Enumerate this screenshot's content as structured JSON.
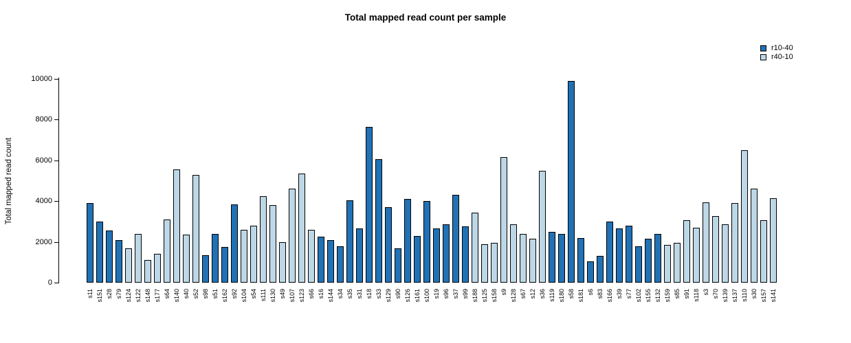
{
  "title": "Total mapped read count per sample",
  "legend": {
    "items": [
      {
        "label": "r10-40",
        "color": "#2171B5"
      },
      {
        "label": "r40-10",
        "color": "#BDD7E7"
      }
    ]
  },
  "colors": {
    "dark": "#2171B5",
    "light": "#BDD7E7",
    "axis": "#000000"
  },
  "chart_data": {
    "type": "bar",
    "title": "Total mapped read count per sample",
    "xlabel": "",
    "ylabel": "Total mapped read count",
    "ylim": [
      0,
      10000
    ],
    "yticks": [
      0,
      2000,
      4000,
      6000,
      8000,
      10000
    ],
    "grid": false,
    "legend_position": "top-right",
    "series_colors": {
      "r10-40": "#2171B5",
      "r40-10": "#BDD7E7"
    },
    "samples": [
      {
        "label": "s11",
        "value": 3900,
        "series": "r10-40"
      },
      {
        "label": "s151",
        "value": 3000,
        "series": "r10-40"
      },
      {
        "label": "s28",
        "value": 2550,
        "series": "r10-40"
      },
      {
        "label": "s79",
        "value": 2100,
        "series": "r10-40"
      },
      {
        "label": "s124",
        "value": 1700,
        "series": "r40-10"
      },
      {
        "label": "s122",
        "value": 2400,
        "series": "r40-10"
      },
      {
        "label": "s148",
        "value": 1100,
        "series": "r40-10"
      },
      {
        "label": "s177",
        "value": 1400,
        "series": "r40-10"
      },
      {
        "label": "s64",
        "value": 3100,
        "series": "r40-10"
      },
      {
        "label": "s140",
        "value": 5550,
        "series": "r40-10"
      },
      {
        "label": "s40",
        "value": 2350,
        "series": "r40-10"
      },
      {
        "label": "s52",
        "value": 5300,
        "series": "r40-10"
      },
      {
        "label": "s98",
        "value": 1350,
        "series": "r10-40"
      },
      {
        "label": "s51",
        "value": 2400,
        "series": "r10-40"
      },
      {
        "label": "s162",
        "value": 1750,
        "series": "r10-40"
      },
      {
        "label": "s92",
        "value": 3850,
        "series": "r10-40"
      },
      {
        "label": "s104",
        "value": 2600,
        "series": "r40-10"
      },
      {
        "label": "s54",
        "value": 2800,
        "series": "r40-10"
      },
      {
        "label": "s111",
        "value": 4250,
        "series": "r40-10"
      },
      {
        "label": "s130",
        "value": 3800,
        "series": "r40-10"
      },
      {
        "label": "s49",
        "value": 2000,
        "series": "r40-10"
      },
      {
        "label": "s107",
        "value": 4600,
        "series": "r40-10"
      },
      {
        "label": "s123",
        "value": 5350,
        "series": "r40-10"
      },
      {
        "label": "s66",
        "value": 2600,
        "series": "r40-10"
      },
      {
        "label": "s16",
        "value": 2250,
        "series": "r10-40"
      },
      {
        "label": "s144",
        "value": 2100,
        "series": "r10-40"
      },
      {
        "label": "s34",
        "value": 1800,
        "series": "r10-40"
      },
      {
        "label": "s35",
        "value": 4050,
        "series": "r10-40"
      },
      {
        "label": "s31",
        "value": 2650,
        "series": "r10-40"
      },
      {
        "label": "s18",
        "value": 7650,
        "series": "r10-40"
      },
      {
        "label": "s33",
        "value": 6050,
        "series": "r10-40"
      },
      {
        "label": "s129",
        "value": 3700,
        "series": "r10-40"
      },
      {
        "label": "s90",
        "value": 1700,
        "series": "r10-40"
      },
      {
        "label": "s126",
        "value": 4100,
        "series": "r10-40"
      },
      {
        "label": "s161",
        "value": 2300,
        "series": "r10-40"
      },
      {
        "label": "s100",
        "value": 4000,
        "series": "r10-40"
      },
      {
        "label": "s19",
        "value": 2650,
        "series": "r10-40"
      },
      {
        "label": "s96",
        "value": 2850,
        "series": "r10-40"
      },
      {
        "label": "s37",
        "value": 4300,
        "series": "r10-40"
      },
      {
        "label": "s99",
        "value": 2750,
        "series": "r10-40"
      },
      {
        "label": "s188",
        "value": 3450,
        "series": "r40-10"
      },
      {
        "label": "s125",
        "value": 1900,
        "series": "r40-10"
      },
      {
        "label": "s158",
        "value": 1950,
        "series": "r40-10"
      },
      {
        "label": "s9",
        "value": 6150,
        "series": "r40-10"
      },
      {
        "label": "s128",
        "value": 2850,
        "series": "r40-10"
      },
      {
        "label": "s67",
        "value": 2400,
        "series": "r40-10"
      },
      {
        "label": "s12",
        "value": 2150,
        "series": "r40-10"
      },
      {
        "label": "s36",
        "value": 5500,
        "series": "r40-10"
      },
      {
        "label": "s119",
        "value": 2500,
        "series": "r10-40"
      },
      {
        "label": "s180",
        "value": 2400,
        "series": "r10-40"
      },
      {
        "label": "s58",
        "value": 9900,
        "series": "r10-40"
      },
      {
        "label": "s181",
        "value": 2200,
        "series": "r10-40"
      },
      {
        "label": "s6",
        "value": 1050,
        "series": "r10-40"
      },
      {
        "label": "s83",
        "value": 1300,
        "series": "r10-40"
      },
      {
        "label": "s166",
        "value": 3000,
        "series": "r10-40"
      },
      {
        "label": "s39",
        "value": 2650,
        "series": "r10-40"
      },
      {
        "label": "s77",
        "value": 2800,
        "series": "r10-40"
      },
      {
        "label": "s102",
        "value": 1800,
        "series": "r10-40"
      },
      {
        "label": "s155",
        "value": 2150,
        "series": "r10-40"
      },
      {
        "label": "s132",
        "value": 2400,
        "series": "r10-40"
      },
      {
        "label": "s159",
        "value": 1850,
        "series": "r40-10"
      },
      {
        "label": "s85",
        "value": 1950,
        "series": "r40-10"
      },
      {
        "label": "s91",
        "value": 3050,
        "series": "r40-10"
      },
      {
        "label": "s118",
        "value": 2700,
        "series": "r40-10"
      },
      {
        "label": "s3",
        "value": 3950,
        "series": "r40-10"
      },
      {
        "label": "s70",
        "value": 3250,
        "series": "r40-10"
      },
      {
        "label": "s139",
        "value": 2850,
        "series": "r40-10"
      },
      {
        "label": "s137",
        "value": 3900,
        "series": "r40-10"
      },
      {
        "label": "s110",
        "value": 6500,
        "series": "r40-10"
      },
      {
        "label": "s30",
        "value": 4600,
        "series": "r40-10"
      },
      {
        "label": "s157",
        "value": 3050,
        "series": "r40-10"
      },
      {
        "label": "s141",
        "value": 4150,
        "series": "r40-10"
      }
    ]
  }
}
